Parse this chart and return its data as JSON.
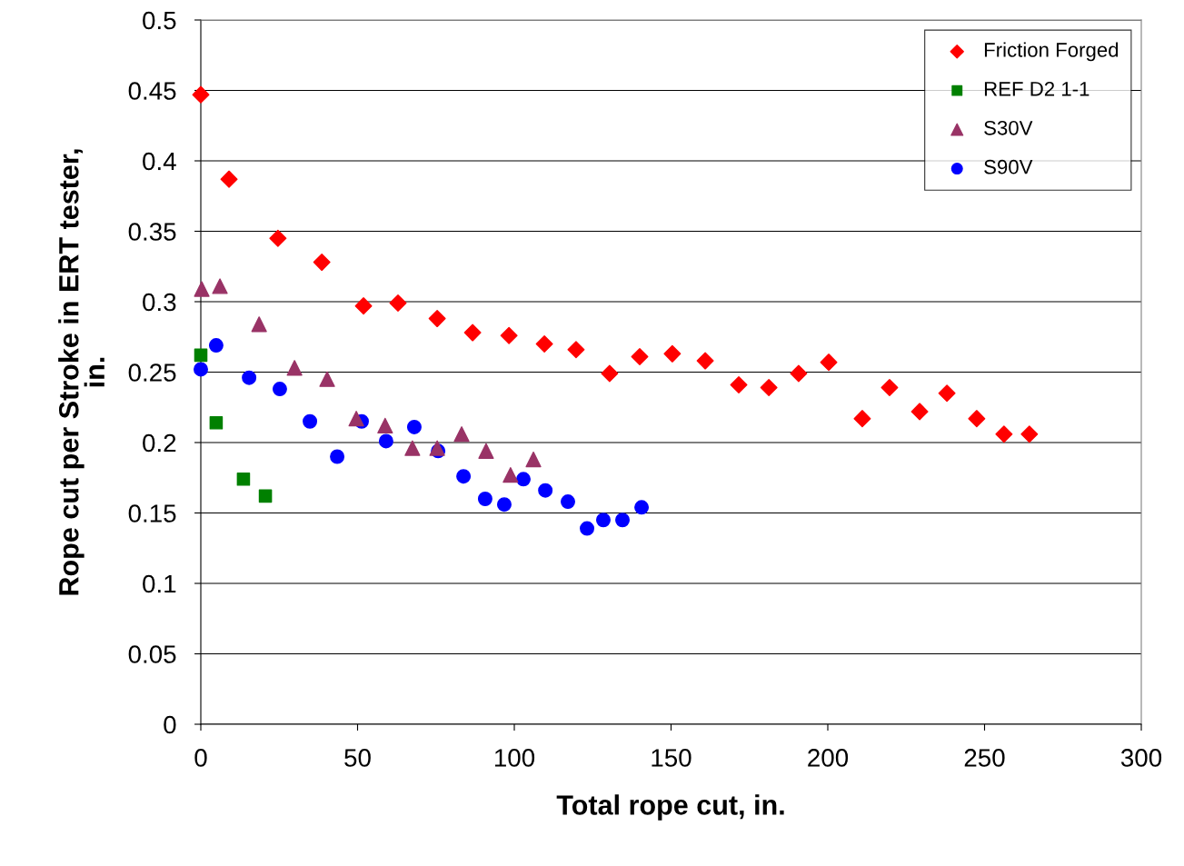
{
  "chart_data": {
    "type": "scatter",
    "xlabel": "Total rope cut, in.",
    "ylabel": "Rope cut per Stroke in ERT tester,\nin.",
    "xlim": [
      0,
      300
    ],
    "xticks": [
      0,
      50,
      100,
      150,
      200,
      250,
      300
    ],
    "ylim": [
      0,
      0.5
    ],
    "yticks": [
      0,
      0.05,
      0.1,
      0.15,
      0.2,
      0.25,
      0.3,
      0.35,
      0.4,
      0.45,
      0.5
    ],
    "grid": "y",
    "legend": "top right",
    "series": [
      {
        "name": "Friction Forged",
        "color": "#ff0000",
        "marker": "diamond",
        "x": [
          0,
          9.0,
          24.6,
          38.6,
          51.9,
          62.9,
          75.4,
          86.7,
          98.3,
          109.6,
          119.7,
          130.4,
          140.0,
          150.4,
          160.9,
          171.6,
          181.2,
          190.7,
          200.3,
          211.0,
          219.7,
          229.3,
          238.0,
          247.5,
          256.2,
          264.3
        ],
        "values": [
          0.447,
          0.387,
          0.345,
          0.328,
          0.297,
          0.299,
          0.288,
          0.278,
          0.276,
          0.27,
          0.266,
          0.249,
          0.261,
          0.263,
          0.258,
          0.241,
          0.239,
          0.249,
          0.257,
          0.217,
          0.239,
          0.222,
          0.235,
          0.217,
          0.206,
          0.206
        ]
      },
      {
        "name": "REF D2 1-1",
        "color": "#008000",
        "marker": "square",
        "x": [
          0,
          4.9,
          13.6,
          20.6
        ],
        "values": [
          0.262,
          0.214,
          0.174,
          0.162
        ]
      },
      {
        "name": "S30V",
        "color": "#993366",
        "marker": "triangle",
        "x": [
          0.3,
          6.1,
          18.6,
          29.9,
          40.3,
          49.6,
          58.8,
          67.5,
          75.4,
          83.2,
          91.0,
          98.8,
          106.1
        ],
        "values": [
          0.309,
          0.311,
          0.284,
          0.253,
          0.245,
          0.217,
          0.212,
          0.196,
          0.196,
          0.206,
          0.194,
          0.177,
          0.188
        ]
      },
      {
        "name": "S90V",
        "color": "#0000ff",
        "marker": "circle",
        "x": [
          0,
          4.9,
          15.4,
          25.2,
          34.8,
          43.5,
          51.3,
          59.1,
          68.1,
          75.7,
          83.8,
          90.7,
          96.8,
          102.9,
          109.9,
          117.1,
          123.2,
          128.4,
          134.5,
          140.6
        ],
        "values": [
          0.252,
          0.269,
          0.246,
          0.238,
          0.215,
          0.19,
          0.215,
          0.201,
          0.211,
          0.194,
          0.176,
          0.16,
          0.156,
          0.174,
          0.166,
          0.158,
          0.139,
          0.145,
          0.145,
          0.154
        ]
      }
    ]
  }
}
